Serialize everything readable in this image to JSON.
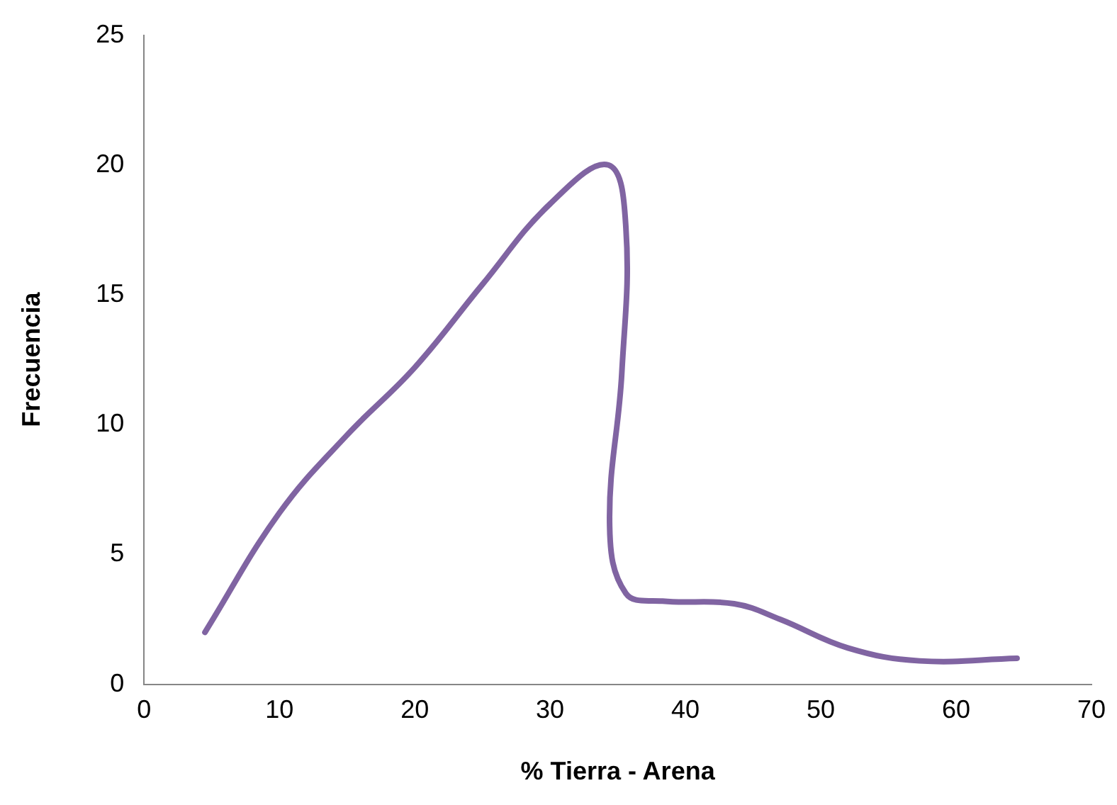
{
  "chart_data": {
    "type": "line",
    "xlabel": "% Tierra - Arena",
    "ylabel": "Frecuencia",
    "xlim": [
      0,
      70
    ],
    "xticks": [
      0,
      10,
      20,
      30,
      40,
      50,
      60,
      70
    ],
    "ylim": [
      0,
      25
    ],
    "yticks": [
      0,
      5,
      10,
      15,
      20,
      25
    ],
    "grid": false,
    "legend": false,
    "marker": "none",
    "series": [
      {
        "color": "#8064a2",
        "x": [
          4.5,
          10,
          15,
          20,
          25,
          30,
          34.3,
          35.6,
          35.3,
          34.4,
          35.6,
          38.3,
          43.6,
          47,
          52,
          57.3,
          64.5
        ],
        "values": [
          2,
          6.6,
          9.6,
          12.2,
          15.4,
          18.5,
          20,
          17.6,
          12,
          6.1,
          3.5,
          3.2,
          3.1,
          2.5,
          1.4,
          0.9,
          1
        ]
      }
    ]
  }
}
